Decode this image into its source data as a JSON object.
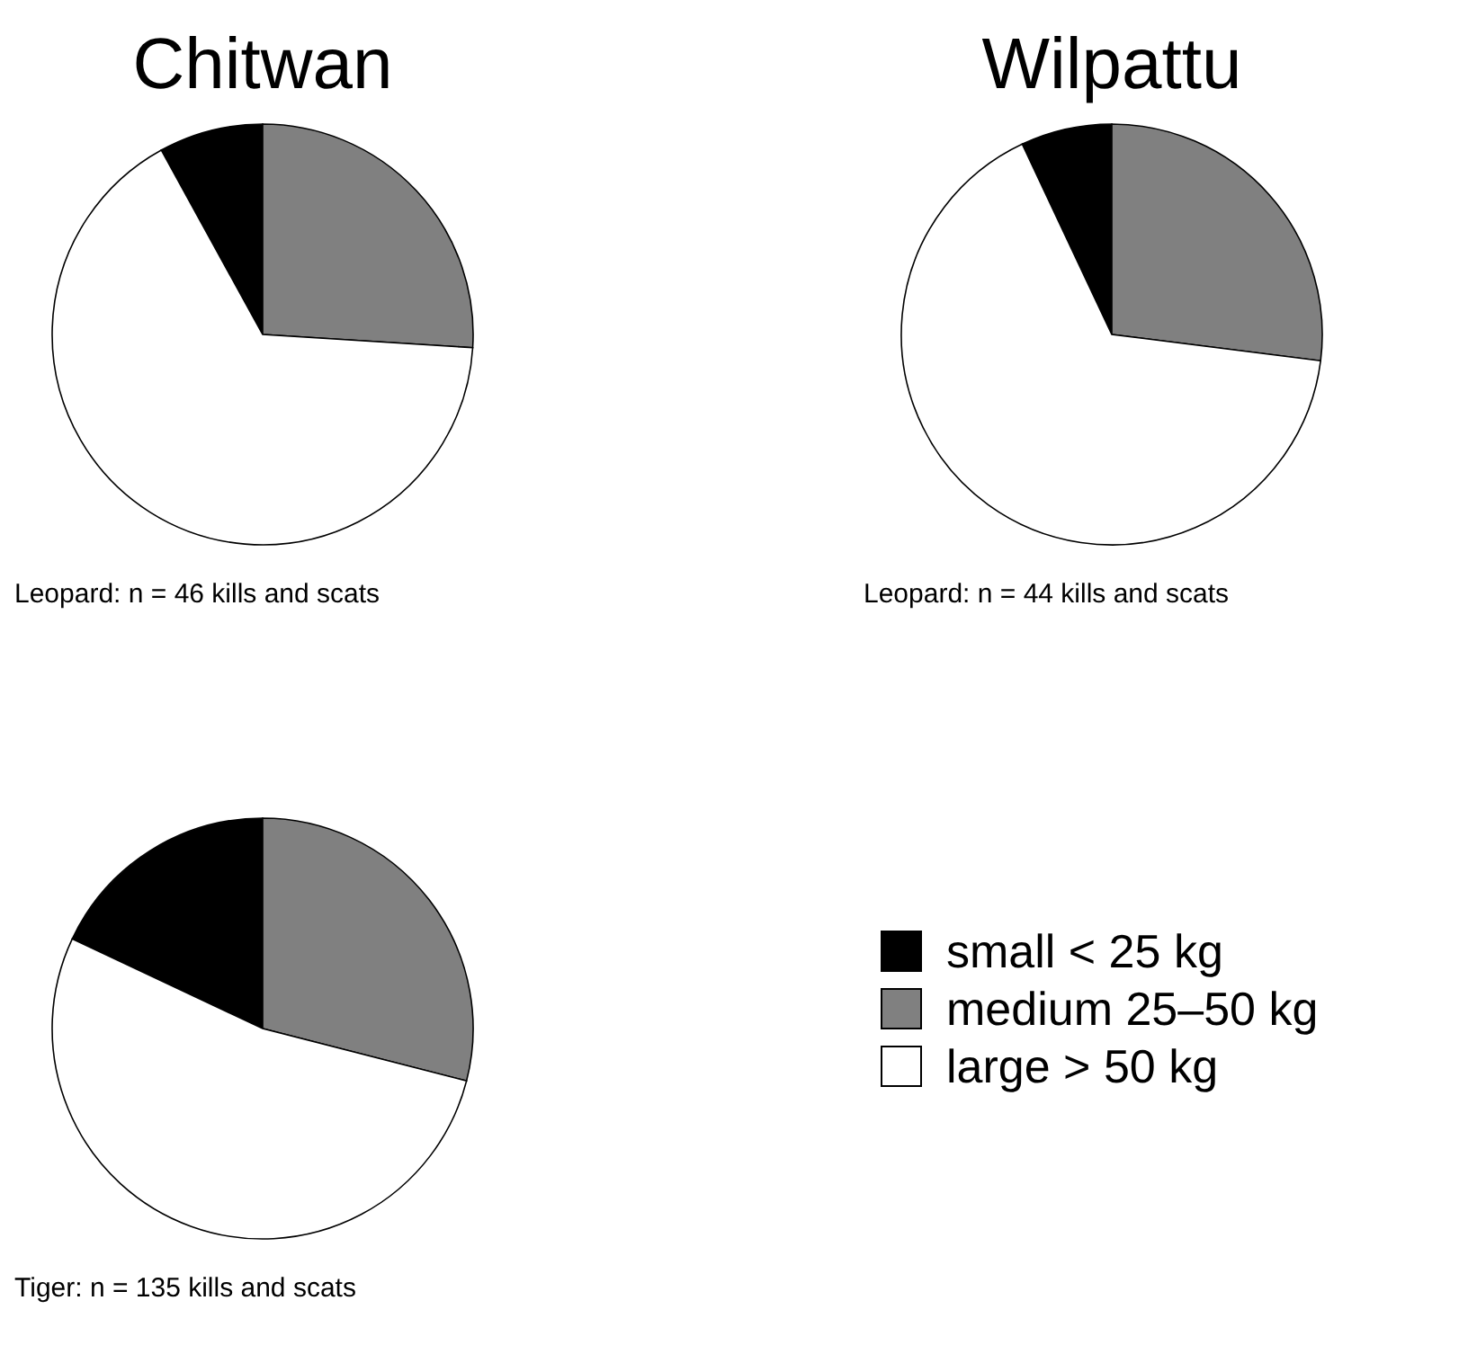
{
  "chart_data": [
    {
      "type": "pie",
      "title": "Chitwan",
      "values": [
        8,
        26,
        66
      ],
      "colors": [
        "#000000",
        "#808080",
        "#ffffff"
      ],
      "annotations": [
        "Leopard: n = 46 kills and scats"
      ]
    },
    {
      "type": "pie",
      "title": "Wilpattu",
      "values": [
        7,
        27,
        66
      ],
      "colors": [
        "#000000",
        "#808080",
        "#ffffff"
      ],
      "annotations": [
        "Leopard: n = 44 kills and scats"
      ]
    },
    {
      "type": "pie",
      "categories": [
        "small < 25 kg",
        "medium 25–50 kg",
        "large > 50 kg"
      ],
      "values": [
        18,
        29,
        53
      ],
      "colors": [
        "#000000",
        "#808080",
        "#ffffff"
      ],
      "annotations": [
        "Tiger: n = 135 kills and scats"
      ],
      "legend": "right"
    }
  ]
}
